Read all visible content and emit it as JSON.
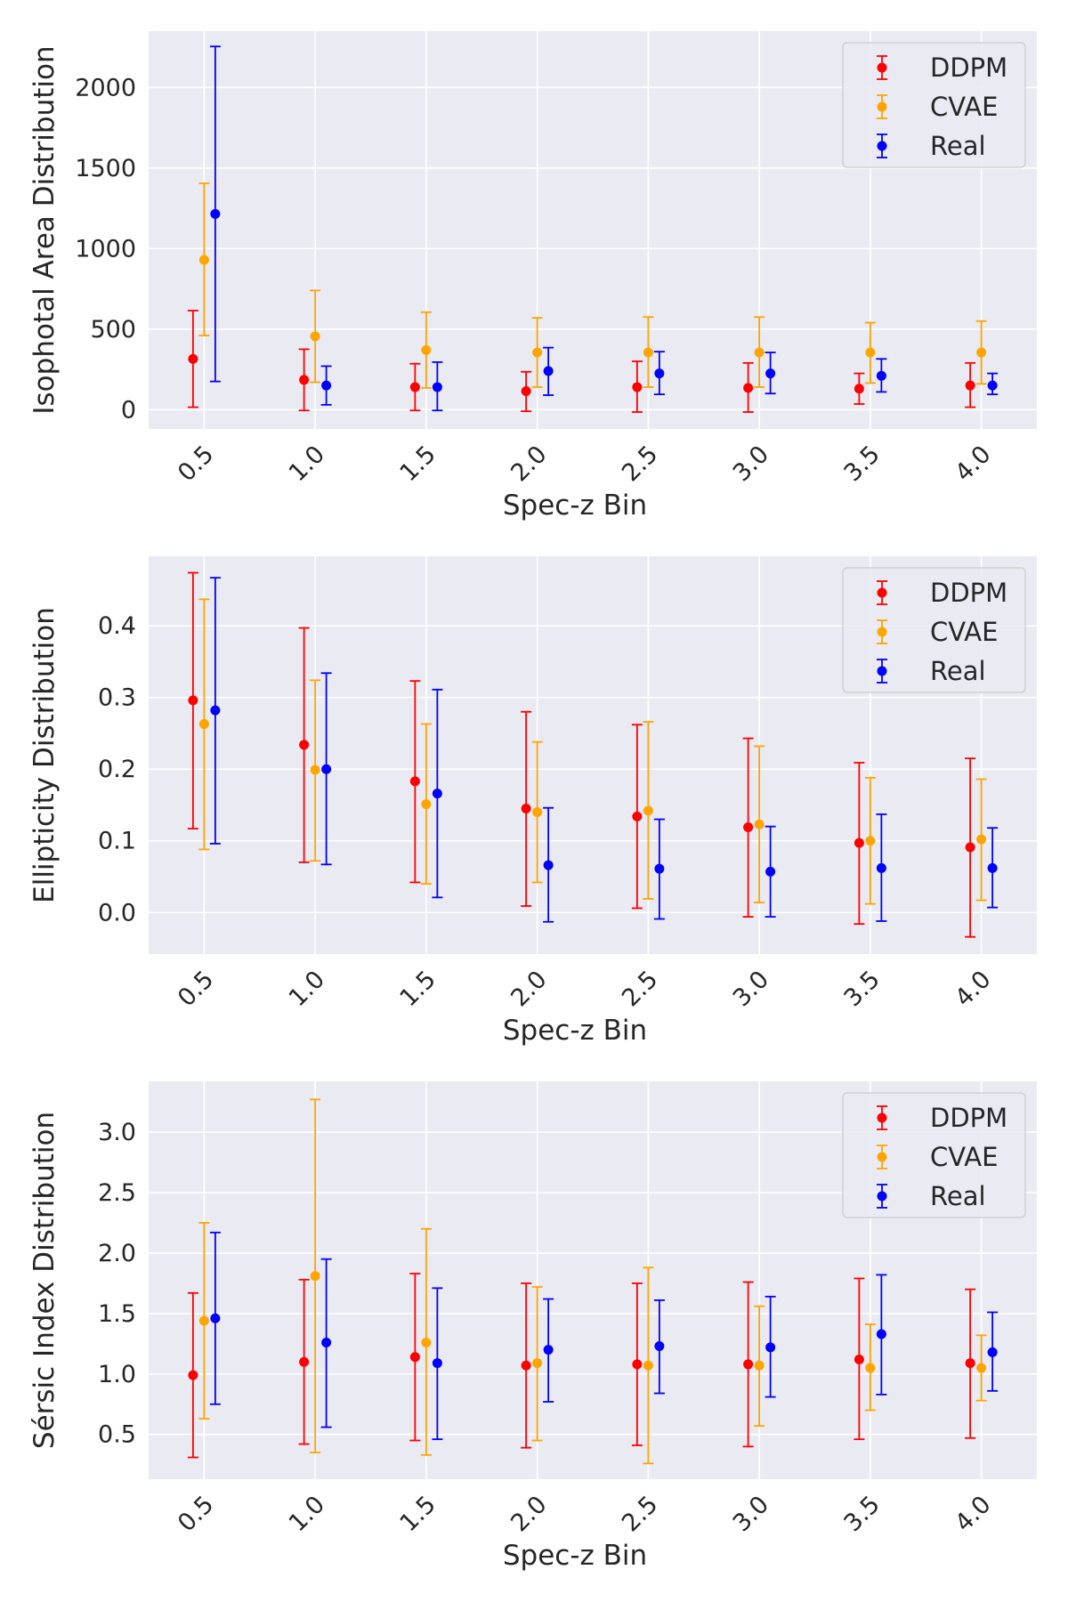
{
  "chart_data": [
    {
      "type": "errorbar",
      "xlabel": "Spec-z Bin",
      "ylabel": "Isophotal Area Distribution",
      "x_categories": [
        "0.5",
        "1.0",
        "1.5",
        "2.0",
        "2.5",
        "3.0",
        "3.5",
        "4.0"
      ],
      "ylim": [
        -120,
        2350
      ],
      "yticks": [
        0,
        500,
        1000,
        1500,
        2000
      ],
      "grid": true,
      "legend": "upper right",
      "series": [
        {
          "name": "DDPM",
          "color": "#ff0000",
          "values": [
            315,
            185,
            140,
            115,
            140,
            135,
            130,
            150
          ],
          "lower": [
            15,
            -5,
            -5,
            -10,
            -15,
            -15,
            35,
            15
          ],
          "upper": [
            615,
            375,
            285,
            235,
            300,
            290,
            225,
            290
          ]
        },
        {
          "name": "CVAE",
          "color": "#ffa500",
          "values": [
            930,
            455,
            370,
            355,
            355,
            355,
            355,
            355
          ],
          "lower": [
            460,
            170,
            135,
            140,
            140,
            140,
            165,
            160
          ],
          "upper": [
            1405,
            740,
            605,
            570,
            575,
            575,
            540,
            550
          ]
        },
        {
          "name": "Real",
          "color": "#0000ff",
          "values": [
            1215,
            150,
            140,
            240,
            225,
            225,
            210,
            150
          ],
          "lower": [
            175,
            30,
            -5,
            90,
            95,
            100,
            110,
            95
          ],
          "upper": [
            2255,
            270,
            295,
            385,
            360,
            355,
            315,
            225
          ]
        }
      ]
    },
    {
      "type": "errorbar",
      "xlabel": "Spec-z Bin",
      "ylabel": "Ellipticity Distribution",
      "x_categories": [
        "0.5",
        "1.0",
        "1.5",
        "2.0",
        "2.5",
        "3.0",
        "3.5",
        "4.0"
      ],
      "ylim": [
        -0.058,
        0.497
      ],
      "yticks": [
        "0.0",
        "0.1",
        "0.2",
        "0.3",
        "0.4"
      ],
      "grid": true,
      "legend": "upper right",
      "series": [
        {
          "name": "DDPM",
          "color": "#ff0000",
          "values": [
            0.296,
            0.234,
            0.183,
            0.145,
            0.134,
            0.119,
            0.097,
            0.091
          ],
          "lower": [
            0.117,
            0.07,
            0.042,
            0.009,
            0.006,
            -0.006,
            -0.016,
            -0.034
          ],
          "upper": [
            0.474,
            0.397,
            0.323,
            0.28,
            0.262,
            0.243,
            0.209,
            0.215
          ]
        },
        {
          "name": "CVAE",
          "color": "#ffa500",
          "values": [
            0.263,
            0.199,
            0.151,
            0.14,
            0.142,
            0.123,
            0.1,
            0.102
          ],
          "lower": [
            0.088,
            0.072,
            0.04,
            0.042,
            0.019,
            0.014,
            0.012,
            0.017
          ],
          "upper": [
            0.437,
            0.324,
            0.263,
            0.238,
            0.266,
            0.232,
            0.188,
            0.186
          ]
        },
        {
          "name": "Real",
          "color": "#0000ff",
          "values": [
            0.282,
            0.2,
            0.166,
            0.066,
            0.061,
            0.057,
            0.062,
            0.062
          ],
          "lower": [
            0.096,
            0.067,
            0.021,
            -0.013,
            -0.009,
            -0.006,
            -0.012,
            0.007
          ],
          "upper": [
            0.467,
            0.334,
            0.311,
            0.146,
            0.13,
            0.12,
            0.137,
            0.118
          ]
        }
      ]
    },
    {
      "type": "errorbar",
      "xlabel": "Sérsic Index Distribution",
      "xaxis_label": "Spec-z Bin",
      "ylabel": "Sérsic Index Distribution",
      "x_categories": [
        "0.5",
        "1.0",
        "1.5",
        "2.0",
        "2.5",
        "3.0",
        "3.5",
        "4.0"
      ],
      "ylim": [
        0.13,
        3.42
      ],
      "yticks": [
        "0.5",
        "1.0",
        "1.5",
        "2.0",
        "2.5",
        "3.0"
      ],
      "grid": true,
      "legend": "upper right",
      "series": [
        {
          "name": "DDPM",
          "color": "#ff0000",
          "values": [
            0.99,
            1.1,
            1.14,
            1.07,
            1.08,
            1.08,
            1.12,
            1.09
          ],
          "lower": [
            0.31,
            0.42,
            0.45,
            0.39,
            0.41,
            0.4,
            0.46,
            0.47
          ],
          "upper": [
            1.67,
            1.78,
            1.83,
            1.75,
            1.75,
            1.76,
            1.79,
            1.7
          ]
        },
        {
          "name": "CVAE",
          "color": "#ffa500",
          "values": [
            1.44,
            1.81,
            1.26,
            1.09,
            1.07,
            1.07,
            1.05,
            1.05
          ],
          "lower": [
            0.63,
            0.35,
            0.33,
            0.45,
            0.26,
            0.57,
            0.7,
            0.78
          ],
          "upper": [
            2.25,
            3.27,
            2.2,
            1.72,
            1.88,
            1.56,
            1.41,
            1.32
          ]
        },
        {
          "name": "Real",
          "color": "#0000ff",
          "values": [
            1.46,
            1.26,
            1.09,
            1.2,
            1.23,
            1.22,
            1.33,
            1.18
          ],
          "lower": [
            0.75,
            0.56,
            0.46,
            0.77,
            0.84,
            0.81,
            0.83,
            0.86
          ],
          "upper": [
            2.17,
            1.95,
            1.71,
            1.62,
            1.61,
            1.64,
            1.82,
            1.51
          ]
        }
      ]
    }
  ]
}
